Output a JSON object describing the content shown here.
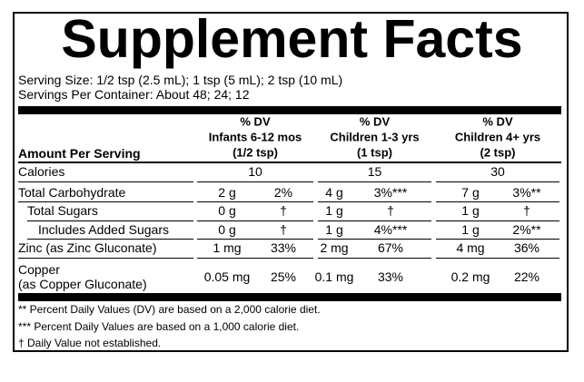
{
  "header": {
    "title": "Supplement Facts",
    "serving_size": "Serving Size: 1/2 tsp (2.5 mL); 1 tsp (5 mL); 2 tsp (10 mL)",
    "servings_per_container": "Servings Per Container: About 48; 24; 12"
  },
  "table": {
    "amount_label": "Amount Per Serving",
    "columns": [
      {
        "dv": "% DV",
        "group": "Infants 6-12 mos",
        "serving": "(1/2 tsp)"
      },
      {
        "dv": "% DV",
        "group": "Children 1-3 yrs",
        "serving": "(1 tsp)"
      },
      {
        "dv": "% DV",
        "group": "Children 4+ yrs",
        "serving": "(2 tsp)"
      }
    ],
    "rows": [
      {
        "label": "Calories",
        "values": [
          "10",
          "15",
          "30"
        ]
      },
      {
        "label": "Total Carbohydrate",
        "values": [
          [
            "2 g",
            "2%"
          ],
          [
            "4 g",
            "3%***"
          ],
          [
            "7 g",
            "3%**"
          ]
        ]
      },
      {
        "label": "Total Sugars",
        "values": [
          [
            "0 g",
            "†"
          ],
          [
            "1 g",
            "†"
          ],
          [
            "1 g",
            "†"
          ]
        ]
      },
      {
        "label": "Includes Added Sugars",
        "values": [
          [
            "0 g",
            "†"
          ],
          [
            "1 g",
            "4%***"
          ],
          [
            "1 g",
            "2%**"
          ]
        ]
      },
      {
        "label": "Zinc (as Zinc Gluconate)",
        "values": [
          [
            "1 mg",
            "33%"
          ],
          [
            "2 mg",
            "67%"
          ],
          [
            "4 mg",
            "36%"
          ]
        ]
      },
      {
        "label": "Copper\n(as Copper Gluconate)",
        "values": [
          [
            "0.05 mg",
            "25%"
          ],
          [
            "0.1 mg",
            "33%"
          ],
          [
            "0.2 mg",
            "22%"
          ]
        ]
      }
    ]
  },
  "footnotes": [
    "** Percent Daily Values (DV) are based on a 2,000 calorie diet.",
    "*** Percent Daily Values are based on a 1,000 calorie diet.",
    "† Daily Value not established."
  ]
}
